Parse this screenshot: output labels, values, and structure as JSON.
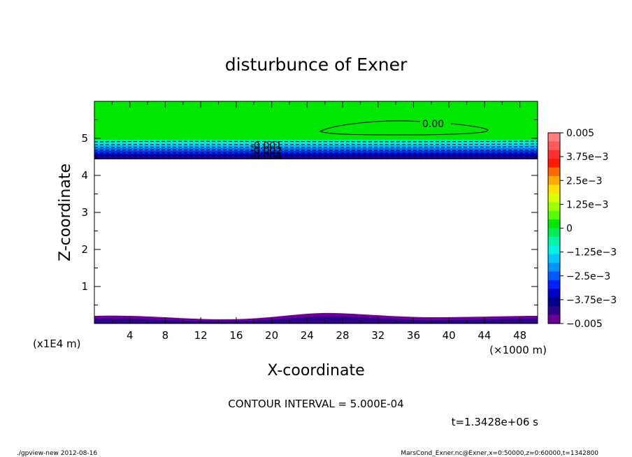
{
  "chart_data": {
    "type": "contour",
    "title": "disturbunce of Exner",
    "xlabel": "X-coordinate",
    "ylabel": "Z-coordinate",
    "x_unit": "(×1000 m)",
    "y_unit": "(x1E4 m)",
    "xlim": [
      0,
      50
    ],
    "ylim": [
      0,
      6
    ],
    "x_ticks": [
      "4",
      "8",
      "12",
      "16",
      "20",
      "24",
      "28",
      "32",
      "36",
      "40",
      "44",
      "48"
    ],
    "y_ticks": [
      "1",
      "2",
      "3",
      "4",
      "5"
    ],
    "contour_labels": [
      "0.00",
      "-0.001",
      "-0.002",
      "-0.004"
    ],
    "colorbar": {
      "range": [
        -0.005,
        0.005
      ],
      "tick_labels": [
        "0.005",
        "3.75e−3",
        "2.5e−3",
        "1.25e−3",
        "0",
        "−1.25e−3",
        "−2.5e−3",
        "−3.75e−3",
        "−0.005"
      ],
      "colors": [
        "#ff7f7f",
        "#ff5a5a",
        "#ff3030",
        "#ff1a00",
        "#ff6a00",
        "#ffaa00",
        "#ffe100",
        "#d9ff00",
        "#9dff00",
        "#55ff00",
        "#00e800",
        "#00ee55",
        "#00f5a5",
        "#00f0e6",
        "#00c8ff",
        "#0094ff",
        "#005aff",
        "#0020ff",
        "#0000c8",
        "#00008c",
        "#2d008c",
        "#6a0096"
      ]
    },
    "contour_interval": "CONTOUR INTERVAL = 5.000E-04",
    "time": "t=1.3428e+06 s"
  },
  "footer": {
    "left": "./gpview-new   2012-08-16",
    "right": "MarsCond_Exner.nc@Exner,x=0:50000,z=0:60000,t=1342800"
  }
}
